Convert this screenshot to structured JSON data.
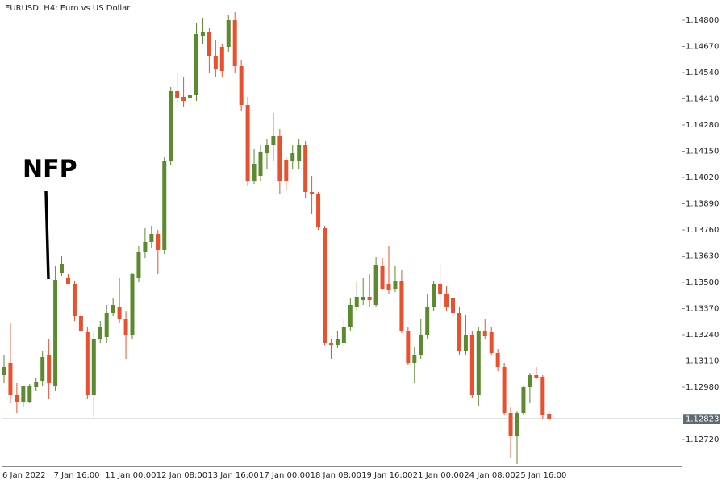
{
  "chart_data": {
    "type": "candlestick",
    "title": "EURUSD, H4:  Euro vs US Dollar",
    "annotation": "NFP",
    "up_color": "#5b8a2f",
    "down_color": "#e8502e",
    "current_price": 1.12823,
    "categories": [
      "6 Jan 2022",
      null,
      null,
      null,
      null,
      null,
      null,
      null,
      "7 Jan 16:00",
      null,
      null,
      null,
      null,
      null,
      null,
      null,
      "11 Jan 00:00",
      null,
      null,
      null,
      null,
      null,
      null,
      null,
      "12 Jan 08:00",
      null,
      null,
      null,
      null,
      null,
      null,
      null,
      "13 Jan 16:00",
      null,
      null,
      null,
      null,
      null,
      null,
      null,
      "17 Jan 00:00",
      null,
      null,
      null,
      null,
      null,
      null,
      null,
      "18 Jan 08:00",
      null,
      null,
      null,
      null,
      null,
      null,
      null,
      "19 Jan 16:00",
      null,
      null,
      null,
      null,
      null,
      null,
      null,
      "21 Jan 00:00",
      null,
      null,
      null,
      null,
      null,
      null,
      null,
      "24 Jan 08:00",
      null,
      null,
      null,
      null,
      null,
      null,
      null,
      "25 Jan 16:00",
      null,
      null,
      null,
      null,
      null
    ],
    "open": [
      1.1304,
      1.131,
      1.1294,
      1.12908,
      1.12908,
      1.1298,
      1.13012,
      1.1314,
      1.12988,
      1.13548,
      1.1352,
      1.13492,
      1.13332,
      1.13252,
      1.1294,
      1.1322,
      1.13228,
      1.13348,
      1.1338,
      1.1332,
      1.1324,
      1.1352,
      1.13652,
      1.137,
      1.1374,
      1.1366,
      1.141,
      1.14448,
      1.1442,
      1.14412,
      1.14428,
      1.1472,
      1.1474,
      1.1462,
      1.14668,
      1.14668,
      1.148,
      1.14572,
      1.1438,
      1.14,
      1.14028,
      1.1414,
      1.1418,
      1.14228,
      1.14108,
      1.141,
      1.141,
      1.1418,
      1.13948,
      1.1394,
      1.13768,
      1.132,
      1.13188,
      1.132,
      1.1328,
      1.1338,
      1.13412,
      1.13428,
      1.13388,
      1.1358,
      1.13492,
      1.13468,
      1.13508,
      1.1326,
      1.131,
      1.1314,
      1.1324,
      1.1338,
      1.13492,
      1.1344,
      1.1342,
      1.13348,
      1.1316,
      1.1324,
      1.1294,
      1.1326,
      1.13252,
      1.13152,
      1.1308,
      1.12852,
      1.1274,
      1.12852,
      1.1298,
      1.1304,
      1.13032,
      1.12848
    ],
    "high": [
      1.1314,
      1.133,
      1.13,
      1.1298,
      1.12996,
      1.13028,
      1.1316,
      1.1322,
      1.1358,
      1.13632,
      1.1354,
      1.13508,
      1.1336,
      1.1328,
      1.13252,
      1.13308,
      1.13388,
      1.1342,
      1.1352,
      1.1336,
      1.13548,
      1.1368,
      1.13768,
      1.1378,
      1.1376,
      1.1412,
      1.14468,
      1.1454,
      1.1452,
      1.145,
      1.14788,
      1.14812,
      1.1476,
      1.147,
      1.1468,
      1.14828,
      1.1484,
      1.146,
      1.1442,
      1.1416,
      1.1418,
      1.14212,
      1.1434,
      1.1426,
      1.1412,
      1.1418,
      1.14212,
      1.142,
      1.14028,
      1.13948,
      1.1378,
      1.1322,
      1.1326,
      1.1332,
      1.1342,
      1.135,
      1.1352,
      1.1354,
      1.13628,
      1.1362,
      1.1368,
      1.1358,
      1.1356,
      1.1328,
      1.1318,
      1.1332,
      1.1344,
      1.13508,
      1.13588,
      1.1348,
      1.13452,
      1.1338,
      1.1334,
      1.1326,
      1.1328,
      1.1332,
      1.1328,
      1.13168,
      1.131,
      1.1288,
      1.1286,
      1.12988,
      1.13052,
      1.1308,
      1.1304,
      1.1286
    ],
    "low": [
      1.13,
      1.129,
      1.12852,
      1.1288,
      1.129,
      1.1296,
      1.12988,
      1.1292,
      1.1296,
      1.13532,
      1.13492,
      1.13308,
      1.13252,
      1.1292,
      1.12832,
      1.132,
      1.132,
      1.13332,
      1.133,
      1.1312,
      1.1322,
      1.135,
      1.1362,
      1.13668,
      1.1354,
      1.1364,
      1.1408,
      1.1438,
      1.14368,
      1.1438,
      1.144,
      1.1468,
      1.1454,
      1.1452,
      1.1452,
      1.1464,
      1.1454,
      1.14348,
      1.1398,
      1.13988,
      1.14,
      1.1406,
      1.141,
      1.1394,
      1.1396,
      1.1406,
      1.1406,
      1.1392,
      1.1384,
      1.1376,
      1.13188,
      1.1312,
      1.13172,
      1.1318,
      1.1326,
      1.1336,
      1.13388,
      1.1338,
      1.1338,
      1.1346,
      1.1344,
      1.13452,
      1.13248,
      1.13088,
      1.13,
      1.1312,
      1.1322,
      1.1336,
      1.1338,
      1.1336,
      1.1332,
      1.1314,
      1.1314,
      1.12928,
      1.12888,
      1.1322,
      1.1314,
      1.1306,
      1.1284,
      1.12628,
      1.126,
      1.1284,
      1.129,
      1.1302,
      1.1282,
      1.12812
    ],
    "close": [
      1.1308,
      1.1294,
      1.12908,
      1.12988,
      1.12988,
      1.13004,
      1.13132,
      1.13,
      1.13512,
      1.13592,
      1.13492,
      1.13332,
      1.1326,
      1.1294,
      1.1322,
      1.1328,
      1.13348,
      1.13388,
      1.1332,
      1.1324,
      1.1354,
      1.13652,
      1.137,
      1.1374,
      1.1366,
      1.141,
      1.14448,
      1.14412,
      1.144,
      1.14428,
      1.14732,
      1.1474,
      1.1462,
      1.1456,
      1.14548,
      1.148,
      1.14572,
      1.1438,
      1.14,
      1.14088,
      1.14148,
      1.1418,
      1.14228,
      1.14,
      1.14,
      1.1414,
      1.1418,
      1.13948,
      1.1394,
      1.13772,
      1.132,
      1.13188,
      1.1322,
      1.1328,
      1.13388,
      1.13428,
      1.13428,
      1.13412,
      1.13588,
      1.13468,
      1.1346,
      1.13508,
      1.1326,
      1.131,
      1.1314,
      1.1324,
      1.1338,
      1.13492,
      1.1344,
      1.1338,
      1.13348,
      1.1316,
      1.1324,
      1.1294,
      1.1326,
      1.13232,
      1.13152,
      1.1308,
      1.12852,
      1.1274,
      1.12852,
      1.1298,
      1.1304,
      1.13028,
      1.1284,
      1.12823
    ],
    "ylim": [
      1.12588,
      1.14892
    ],
    "yticks": [
      {
        "value": 1.148,
        "label": "1.14800"
      },
      {
        "value": 1.1467,
        "label": "1.14670"
      },
      {
        "value": 1.1454,
        "label": "1.14540"
      },
      {
        "value": 1.1441,
        "label": "1.14410"
      },
      {
        "value": 1.1428,
        "label": "1.14280"
      },
      {
        "value": 1.1415,
        "label": "1.14150"
      },
      {
        "value": 1.1402,
        "label": "1.14020"
      },
      {
        "value": 1.1389,
        "label": "1.13890"
      },
      {
        "value": 1.1376,
        "label": "1.13760"
      },
      {
        "value": 1.1363,
        "label": "1.13630"
      },
      {
        "value": 1.135,
        "label": "1.13500"
      },
      {
        "value": 1.1337,
        "label": "1.13370"
      },
      {
        "value": 1.1324,
        "label": "1.13240"
      },
      {
        "value": 1.1311,
        "label": "1.13110"
      },
      {
        "value": 1.1298,
        "label": "1.12980"
      },
      {
        "value": 1.1272,
        "label": "1.12720"
      }
    ]
  }
}
